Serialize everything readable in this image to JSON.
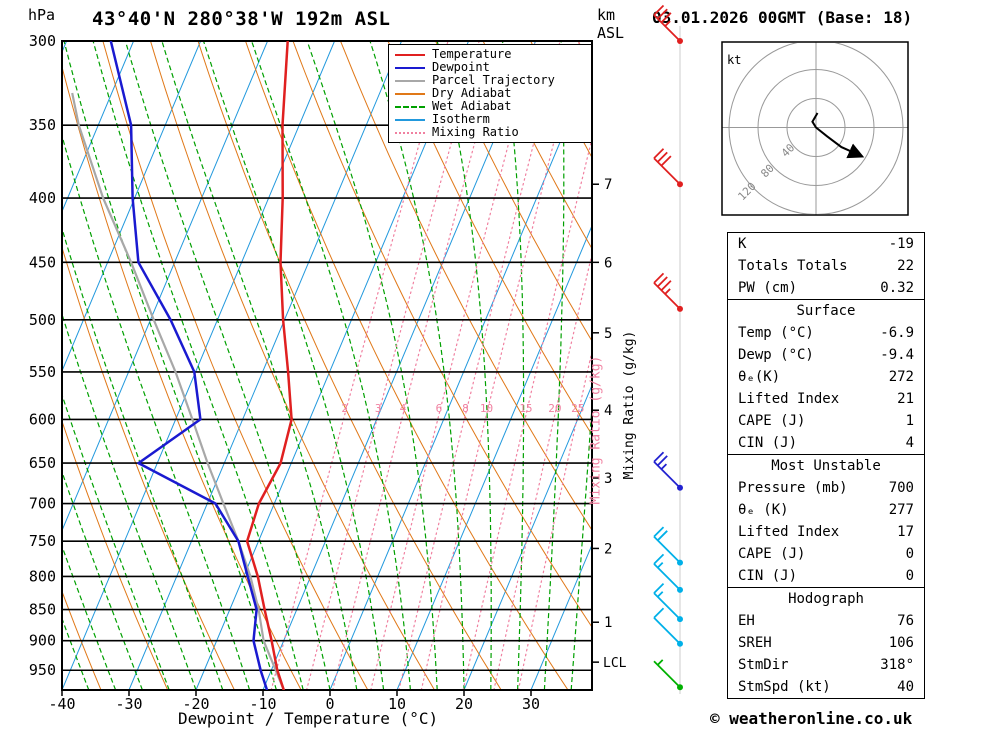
{
  "header": {
    "pressure_unit": "hPa",
    "title": "43°40'N 280°38'W 192m ASL",
    "altitude_axis_label_top": "km",
    "altitude_axis_label_bottom": "ASL",
    "datetime": "03.01.2026 00GMT (Base: 18)"
  },
  "footer": {
    "xlabel": "Dewpoint / Temperature (°C)",
    "copyright": "© weatheronline.co.uk"
  },
  "colors": {
    "temperature": "#e02020",
    "dewpoint": "#1a1ad0",
    "parcel": "#a8a8a8",
    "dry_adiabat": "#e07818",
    "wet_adiabat": "#00a000",
    "isotherm": "#2299dd",
    "mixing_ratio": "#f080a0",
    "barb_upper": "#e02020",
    "barb_mid": "#2222d0",
    "barb_low": "#00b0e8",
    "barb_sfc": "#00b000",
    "grid": "#000000",
    "hodograph_rings": "#999999"
  },
  "legend": {
    "items": [
      {
        "label": "Temperature",
        "color_key": "temperature",
        "style": "solid"
      },
      {
        "label": "Dewpoint",
        "color_key": "dewpoint",
        "style": "solid"
      },
      {
        "label": "Parcel Trajectory",
        "color_key": "parcel",
        "style": "solid"
      },
      {
        "label": "Dry Adiabat",
        "color_key": "dry_adiabat",
        "style": "solid"
      },
      {
        "label": "Wet Adiabat",
        "color_key": "wet_adiabat",
        "style": "dashed"
      },
      {
        "label": "Isotherm",
        "color_key": "isotherm",
        "style": "solid"
      },
      {
        "label": "Mixing Ratio",
        "color_key": "mixing_ratio",
        "style": "dotted"
      }
    ]
  },
  "chart_data": {
    "type": "skewt_log_p",
    "x_axis": {
      "label": "Dewpoint / Temperature (°C)",
      "ticks_C": [
        -40,
        -30,
        -20,
        -10,
        0,
        10,
        20,
        30
      ],
      "range_C": [
        -40,
        39
      ]
    },
    "y_axis": {
      "label": "hPa",
      "scale": "log",
      "ticks_hPa": [
        300,
        350,
        400,
        450,
        500,
        550,
        600,
        650,
        700,
        750,
        800,
        850,
        900,
        950
      ],
      "range_hPa": [
        300,
        985
      ]
    },
    "altitude_axis": {
      "label": "km ASL",
      "ticks": [
        {
          "km": 1,
          "hPa": 870
        },
        {
          "km": 2,
          "hPa": 760
        },
        {
          "km": 3,
          "hPa": 668
        },
        {
          "km": 4,
          "hPa": 590
        },
        {
          "km": 5,
          "hPa": 512
        },
        {
          "km": 6,
          "hPa": 450
        },
        {
          "km": 7,
          "hPa": 390
        }
      ],
      "lcl": {
        "label": "LCL",
        "hPa": 936
      }
    },
    "mixing_ratio": {
      "axis_label": "Mixing Ratio (g/kg)",
      "values_gkg": [
        2,
        3,
        4,
        6,
        8,
        10,
        15,
        20,
        25
      ],
      "label_row_hPa": 595
    },
    "series": {
      "temperature_C_by_hPa": [
        [
          985,
          -6.9
        ],
        [
          950,
          -9.1
        ],
        [
          900,
          -11.8
        ],
        [
          850,
          -14.8
        ],
        [
          800,
          -17.9
        ],
        [
          750,
          -21.7
        ],
        [
          700,
          -22.3
        ],
        [
          650,
          -21.6
        ],
        [
          600,
          -22.7
        ],
        [
          550,
          -26.2
        ],
        [
          500,
          -30.2
        ],
        [
          450,
          -34.2
        ],
        [
          400,
          -37.9
        ],
        [
          350,
          -42.5
        ],
        [
          300,
          -47.0
        ]
      ],
      "dewpoint_C_by_hPa": [
        [
          985,
          -9.4
        ],
        [
          950,
          -11.6
        ],
        [
          900,
          -14.5
        ],
        [
          850,
          -16.0
        ],
        [
          800,
          -19.4
        ],
        [
          750,
          -23.0
        ],
        [
          700,
          -28.8
        ],
        [
          650,
          -42.8
        ],
        [
          600,
          -36.3
        ],
        [
          550,
          -40.2
        ],
        [
          500,
          -47.0
        ],
        [
          450,
          -55.4
        ],
        [
          400,
          -60.3
        ],
        [
          350,
          -65.1
        ],
        [
          300,
          -73.4
        ]
      ],
      "parcel_C_by_hPa": [
        [
          985,
          -6.9
        ],
        [
          900,
          -13.0
        ],
        [
          850,
          -15.7
        ],
        [
          800,
          -19.0
        ],
        [
          750,
          -23.0
        ],
        [
          700,
          -27.6
        ],
        [
          650,
          -32.5
        ],
        [
          600,
          -37.5
        ],
        [
          550,
          -43.0
        ],
        [
          500,
          -49.5
        ],
        [
          450,
          -56.5
        ],
        [
          400,
          -64.7
        ],
        [
          350,
          -72.9
        ],
        [
          330,
          -75.9
        ]
      ]
    },
    "wind_barbs": [
      {
        "hPa": 300,
        "kt": 35,
        "color_key": "barb_upper"
      },
      {
        "hPa": 390,
        "kt": 30,
        "color_key": "barb_upper"
      },
      {
        "hPa": 490,
        "kt": 35,
        "color_key": "barb_upper"
      },
      {
        "hPa": 680,
        "kt": 25,
        "color_key": "barb_mid"
      },
      {
        "hPa": 780,
        "kt": 20,
        "color_key": "barb_low"
      },
      {
        "hPa": 820,
        "kt": 15,
        "color_key": "barb_low"
      },
      {
        "hPa": 865,
        "kt": 15,
        "color_key": "barb_low"
      },
      {
        "hPa": 905,
        "kt": 10,
        "color_key": "barb_low"
      },
      {
        "hPa": 980,
        "kt": 5,
        "color_key": "barb_sfc"
      }
    ],
    "hodograph": {
      "unit": "kt",
      "rings_kt": [
        40,
        80,
        120
      ],
      "trace_uv_kt": [
        [
          2,
          20
        ],
        [
          -5,
          8
        ],
        [
          0,
          0
        ],
        [
          15,
          -12
        ],
        [
          35,
          -27
        ],
        [
          64,
          -40
        ]
      ]
    }
  },
  "table": {
    "sections": [
      {
        "header": null,
        "rows": [
          [
            "K",
            "-19"
          ],
          [
            "Totals Totals",
            "22"
          ],
          [
            "PW (cm)",
            "0.32"
          ]
        ]
      },
      {
        "header": "Surface",
        "rows": [
          [
            "Temp (°C)",
            "-6.9"
          ],
          [
            "Dewp (°C)",
            "-9.4"
          ],
          [
            "θₑ(K)",
            "272"
          ],
          [
            "Lifted Index",
            "21"
          ],
          [
            "CAPE (J)",
            "1"
          ],
          [
            "CIN (J)",
            "4"
          ]
        ]
      },
      {
        "header": "Most Unstable",
        "rows": [
          [
            "Pressure (mb)",
            "700"
          ],
          [
            "θₑ (K)",
            "277"
          ],
          [
            "Lifted Index",
            "17"
          ],
          [
            "CAPE (J)",
            "0"
          ],
          [
            "CIN (J)",
            "0"
          ]
        ]
      },
      {
        "header": "Hodograph",
        "rows": [
          [
            "EH",
            "76"
          ],
          [
            "SREH",
            "106"
          ],
          [
            "StmDir",
            "318°"
          ],
          [
            "StmSpd (kt)",
            "40"
          ]
        ]
      }
    ]
  }
}
